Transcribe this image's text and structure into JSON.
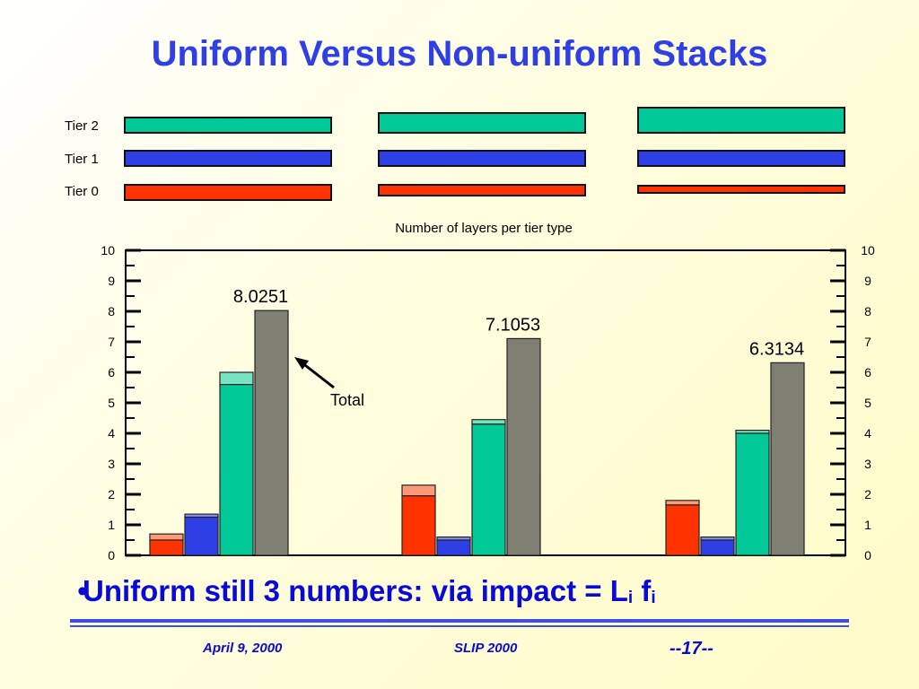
{
  "slide": {
    "title": "Uniform Versus Non-uniform Stacks",
    "bullet_text": "Uniform still 3 numbers: via impact = L",
    "bullet_sub1": "i",
    "bullet_f": " f",
    "bullet_sub2": "i",
    "footer_date": "April 9, 2000",
    "footer_conf": "SLIP 2000",
    "footer_page": "--17--"
  },
  "stacks": {
    "tier_labels": [
      "Tier 2",
      "Tier 1",
      "Tier 0"
    ],
    "colors": {
      "tier2": "#00c896",
      "tier1": "#2f3fe6",
      "tier0": "#ff3300"
    }
  },
  "annotation": {
    "total_label": "Total"
  },
  "chart_data": {
    "type": "bar",
    "title": "Number of layers per tier type",
    "ylim": [
      0,
      10
    ],
    "yticks": [
      "0",
      "1",
      "2",
      "3",
      "4",
      "5",
      "6",
      "7",
      "8",
      "9",
      "10"
    ],
    "groups": [
      {
        "red": [
          0.5,
          0.7
        ],
        "blue": [
          1.25,
          1.35
        ],
        "green": [
          5.6,
          6.0
        ],
        "total": 8.0251,
        "total_label": "8.0251"
      },
      {
        "red": [
          1.95,
          2.3
        ],
        "blue": [
          0.5,
          0.6
        ],
        "green": [
          4.3,
          4.45
        ],
        "total": 7.1053,
        "total_label": "7.1053"
      },
      {
        "red": [
          1.65,
          1.8
        ],
        "blue": [
          0.5,
          0.6
        ],
        "green": [
          4.0,
          4.1
        ],
        "total": 6.3134,
        "total_label": "6.3134"
      }
    ],
    "colors": {
      "red": "#ff3300",
      "red_light": "#ff9977",
      "blue": "#2f3fe6",
      "blue_light": "#8a93f0",
      "green": "#00c896",
      "green_light": "#77e3c3",
      "total": "#7f7f74"
    }
  }
}
